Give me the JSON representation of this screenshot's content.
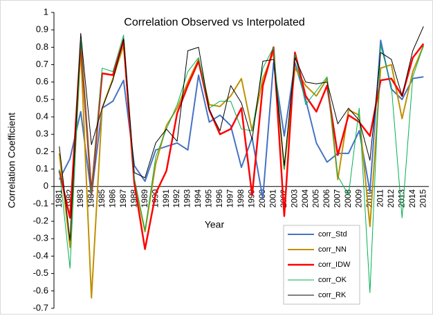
{
  "chart_data": {
    "type": "line",
    "title": "Correlation Observed vs Interpolated",
    "x_label": "Year",
    "y_label": "Correlation Coefficient",
    "categories": [
      "1981",
      "1982",
      "1983",
      "1984",
      "1985",
      "1986",
      "1987",
      "1988",
      "1989",
      "1990",
      "1991",
      "1992",
      "1993",
      "1994",
      "1995",
      "1996",
      "1997",
      "1998",
      "1999",
      "2000",
      "2001",
      "2002",
      "2003",
      "2004",
      "2005",
      "2006",
      "2007",
      "2008",
      "2009",
      "2010",
      "2011",
      "2012",
      "2013",
      "2014",
      "2015"
    ],
    "series": [
      {
        "name": "corr_Std",
        "color": "#4472c4",
        "width": 2,
        "values": [
          0.04,
          0.16,
          0.43,
          -0.05,
          0.45,
          0.49,
          0.61,
          0.12,
          0.03,
          0.21,
          0.23,
          0.25,
          0.21,
          0.64,
          0.37,
          0.41,
          0.35,
          0.11,
          0.28,
          -0.07,
          0.71,
          0.29,
          0.71,
          0.5,
          0.25,
          0.14,
          0.19,
          0.19,
          0.32,
          -0.03,
          0.84,
          0.56,
          0.5,
          0.62,
          0.63
        ]
      },
      {
        "name": "corr_NN",
        "color": "#bf9000",
        "width": 2,
        "values": [
          0.19,
          -0.35,
          0.79,
          -0.64,
          0.45,
          0.62,
          0.81,
          0.03,
          -0.26,
          0.13,
          0.35,
          0.45,
          0.6,
          0.73,
          0.47,
          0.46,
          0.52,
          0.62,
          0.32,
          0.62,
          0.77,
          0.1,
          0.68,
          0.58,
          0.52,
          0.62,
          0.04,
          0.44,
          0.41,
          -0.23,
          0.68,
          0.7,
          0.39,
          0.66,
          0.81
        ]
      },
      {
        "name": "corr_IDW",
        "color": "#ff0000",
        "width": 2.5,
        "values": [
          0.09,
          -0.18,
          0.83,
          -0.04,
          0.65,
          0.64,
          0.84,
          0.02,
          -0.36,
          -0.04,
          0.09,
          0.42,
          0.58,
          0.72,
          0.44,
          0.3,
          0.33,
          0.45,
          -0.05,
          0.58,
          0.8,
          -0.17,
          0.77,
          0.52,
          0.43,
          0.58,
          0.18,
          0.41,
          0.37,
          0.29,
          0.61,
          0.62,
          0.52,
          0.74,
          0.82
        ]
      },
      {
        "name": "corr_OK",
        "color": "#00b050",
        "width": 1,
        "values": [
          0.1,
          -0.47,
          0.84,
          -0.04,
          0.68,
          0.66,
          0.87,
          0.05,
          -0.25,
          0.17,
          0.33,
          0.47,
          0.66,
          0.74,
          0.45,
          0.49,
          0.49,
          0.33,
          0.32,
          0.68,
          0.8,
          0.1,
          0.76,
          0.47,
          0.55,
          0.63,
          0.06,
          -0.05,
          0.45,
          -0.61,
          0.81,
          0.58,
          -0.18,
          0.63,
          0.81
        ]
      },
      {
        "name": "corr_RK",
        "color": "#000000",
        "width": 1,
        "values": [
          0.23,
          -0.31,
          0.88,
          0.24,
          0.45,
          0.61,
          0.85,
          0.08,
          0.05,
          0.25,
          0.33,
          0.26,
          0.78,
          0.8,
          0.44,
          0.32,
          0.58,
          0.48,
          0.27,
          0.72,
          0.73,
          0.12,
          0.74,
          0.6,
          0.59,
          0.6,
          0.36,
          0.45,
          0.38,
          0.15,
          0.77,
          0.73,
          0.52,
          0.78,
          0.92
        ]
      }
    ],
    "ylim": [
      -0.7,
      1
    ],
    "yticks": [
      -0.7,
      -0.6,
      -0.5,
      -0.4,
      -0.3,
      -0.2,
      -0.1,
      0,
      0.1,
      0.2,
      0.3,
      0.4,
      0.5,
      0.6,
      0.7,
      0.8,
      0.9,
      1
    ],
    "grid": false
  }
}
